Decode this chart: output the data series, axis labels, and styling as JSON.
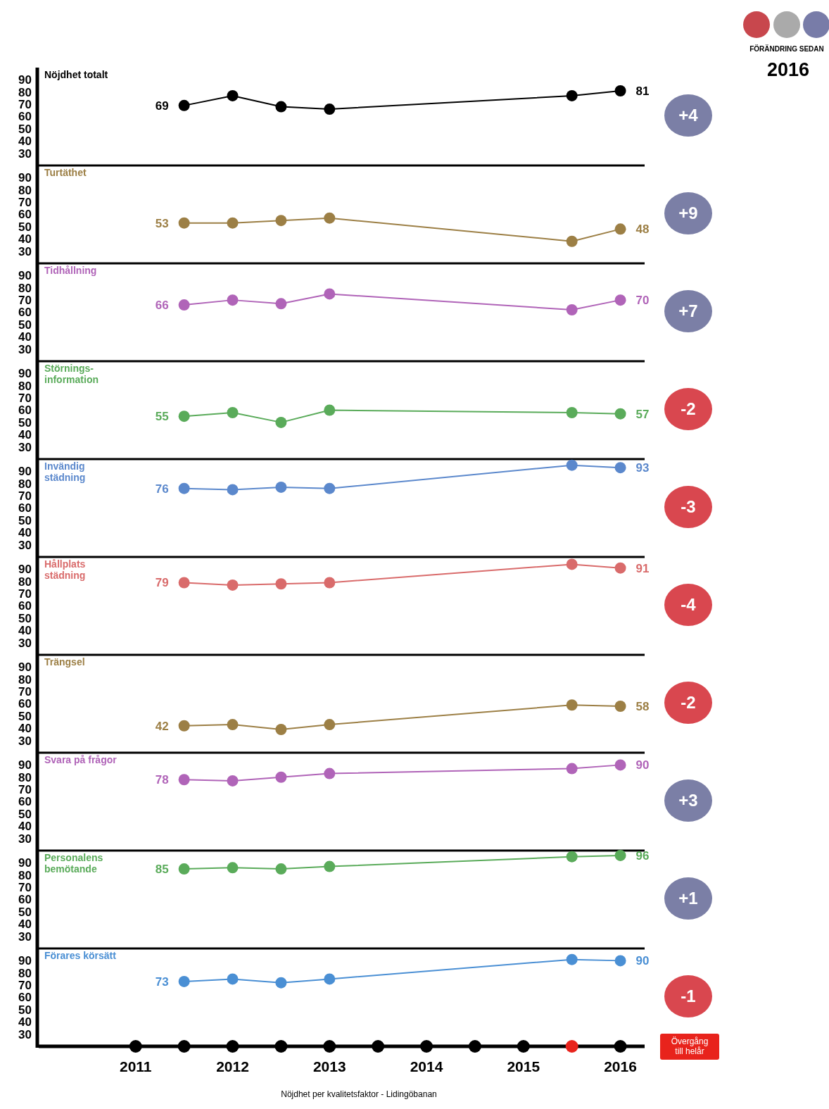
{
  "chart_data": [
    {
      "type": "line",
      "title": "Nöjdhet totalt",
      "x": [
        2011.5,
        2012,
        2012.5,
        2013,
        2015.5,
        2016
      ],
      "values": [
        69,
        77,
        68,
        66,
        77,
        81
      ],
      "value_labels": [
        "69",
        null,
        null,
        null,
        null,
        "81"
      ],
      "color": "#000000",
      "xlim": [
        2010,
        2016.25
      ],
      "ylim": [
        20,
        100
      ],
      "yticks": [
        30,
        40,
        50,
        60,
        70,
        80,
        90
      ],
      "tick_labels": "y",
      "marker": "circle",
      "annotations": [
        "+4",
        "FÖRÄNDRING SEDAN",
        "2016"
      ]
    },
    {
      "type": "line",
      "title": "Turtäthet",
      "x": [
        2011.5,
        2012,
        2012.5,
        2013,
        2015.5,
        2016
      ],
      "values": [
        53,
        53,
        55,
        57,
        38,
        48
      ],
      "value_labels": [
        "53",
        null,
        null,
        null,
        null,
        "48"
      ],
      "color": "#9c7f45",
      "xlim": [
        2010,
        2016.25
      ],
      "ylim": [
        20,
        100
      ],
      "yticks": [
        30,
        40,
        50,
        60,
        70,
        80,
        90
      ],
      "tick_labels": "y",
      "marker": "circle",
      "annotations": [
        "+9"
      ]
    },
    {
      "type": "line",
      "title": "Tidhållning",
      "x": [
        2011.5,
        2012,
        2012.5,
        2013,
        2015.5,
        2016
      ],
      "values": [
        66,
        70,
        67,
        75,
        62,
        70
      ],
      "value_labels": [
        "66",
        null,
        null,
        null,
        null,
        "70"
      ],
      "color": "#b064b8",
      "xlim": [
        2010,
        2016.25
      ],
      "ylim": [
        20,
        100
      ],
      "yticks": [
        30,
        40,
        50,
        60,
        70,
        80,
        90
      ],
      "tick_labels": "y",
      "marker": "circle",
      "annotations": [
        "+7"
      ]
    },
    {
      "type": "line",
      "title": "Störnings-\ninformation",
      "x": [
        2011.5,
        2012,
        2012.5,
        2013,
        2015.5,
        2016
      ],
      "values": [
        55,
        58,
        50,
        60,
        58,
        57
      ],
      "value_labels": [
        "55",
        null,
        null,
        null,
        null,
        "57"
      ],
      "color": "#5aab5a",
      "xlim": [
        2010,
        2016.25
      ],
      "ylim": [
        20,
        100
      ],
      "yticks": [
        30,
        40,
        50,
        60,
        70,
        80,
        90
      ],
      "tick_labels": "y",
      "marker": "circle",
      "annotations": [
        "-2"
      ]
    },
    {
      "type": "line",
      "title": "Invändig\nstädning",
      "x": [
        2011.5,
        2012,
        2012.5,
        2013,
        2015.5,
        2016
      ],
      "values": [
        76,
        75,
        77,
        76,
        95,
        93
      ],
      "value_labels": [
        "76",
        null,
        null,
        null,
        null,
        "93"
      ],
      "color": "#5b88cc",
      "xlim": [
        2010,
        2016.25
      ],
      "ylim": [
        20,
        100
      ],
      "yticks": [
        30,
        40,
        50,
        60,
        70,
        80,
        90
      ],
      "tick_labels": "y",
      "marker": "circle",
      "annotations": [
        "-3"
      ]
    },
    {
      "type": "line",
      "title": "Hållplats\nstädning",
      "x": [
        2011.5,
        2012,
        2012.5,
        2013,
        2015.5,
        2016
      ],
      "values": [
        79,
        77,
        78,
        79,
        94,
        91
      ],
      "value_labels": [
        "79",
        null,
        null,
        null,
        null,
        "91"
      ],
      "color": "#d96b6b",
      "xlim": [
        2010,
        2016.25
      ],
      "ylim": [
        20,
        100
      ],
      "yticks": [
        30,
        40,
        50,
        60,
        70,
        80,
        90
      ],
      "tick_labels": "y",
      "marker": "circle",
      "annotations": [
        "-4"
      ]
    },
    {
      "type": "line",
      "title": "Trängsel",
      "x": [
        2011.5,
        2012,
        2012.5,
        2013,
        2015.5,
        2016
      ],
      "values": [
        42,
        43,
        39,
        43,
        59,
        58
      ],
      "value_labels": [
        "42",
        null,
        null,
        null,
        null,
        "58"
      ],
      "color": "#9c7f45",
      "xlim": [
        2010,
        2016.25
      ],
      "ylim": [
        20,
        100
      ],
      "yticks": [
        30,
        40,
        50,
        60,
        70,
        80,
        90
      ],
      "tick_labels": "y",
      "marker": "circle",
      "annotations": [
        "-2"
      ]
    },
    {
      "type": "line",
      "title": "Svara på frågor",
      "x": [
        2011.5,
        2012,
        2012.5,
        2013,
        2015.5,
        2016
      ],
      "values": [
        78,
        77,
        80,
        83,
        87,
        90
      ],
      "value_labels": [
        "78",
        null,
        null,
        null,
        null,
        "90"
      ],
      "color": "#b064b8",
      "xlim": [
        2010,
        2016.25
      ],
      "ylim": [
        20,
        100
      ],
      "yticks": [
        30,
        40,
        50,
        60,
        70,
        80,
        90
      ],
      "tick_labels": "y",
      "marker": "circle",
      "annotations": [
        "+3"
      ]
    },
    {
      "type": "line",
      "title": "Personalens\nbemötande",
      "x": [
        2011.5,
        2012,
        2012.5,
        2013,
        2015.5,
        2016
      ],
      "values": [
        85,
        86,
        85,
        87,
        95,
        96
      ],
      "value_labels": [
        "85",
        null,
        null,
        null,
        null,
        "96"
      ],
      "color": "#5aab5a",
      "xlim": [
        2010,
        2016.25
      ],
      "ylim": [
        20,
        100
      ],
      "yticks": [
        30,
        40,
        50,
        60,
        70,
        80,
        90
      ],
      "tick_labels": "y",
      "marker": "circle",
      "annotations": [
        "+1"
      ]
    },
    {
      "type": "line",
      "title": "Förares körsätt",
      "series": [
        {
          "x": [
            2011.5,
            2012,
            2012.5,
            2013,
            2015.5,
            2016
          ],
          "values": [
            73,
            75,
            72,
            75,
            91,
            90
          ],
          "value_labels": [
            "73",
            null,
            null,
            null,
            null,
            "90"
          ],
          "color": "#4a8fd4"
        },
        {
          "type": "scatter",
          "x": [
            2011,
            2011.5,
            2012,
            2012.5,
            2013,
            2013.5,
            2014,
            2014.5,
            2015,
            2015.5,
            2016
          ],
          "values": [
            20,
            20,
            20,
            20,
            20,
            20,
            20,
            20,
            20,
            20,
            20
          ],
          "colors": [
            "#000000",
            "#000000",
            "#000000",
            "#000000",
            "#000000",
            "#000000",
            "#000000",
            "#000000",
            "#000000",
            "#e8231c",
            "#000000"
          ]
        }
      ],
      "xlim": [
        2010,
        2016.25
      ],
      "xticks": [
        2011,
        2012,
        2013,
        2014,
        2015,
        2016
      ],
      "ylim": [
        20,
        100
      ],
      "yticks": [
        30,
        40,
        50,
        60,
        70,
        80,
        90
      ],
      "marker": "circle",
      "annotations": [
        "-1",
        "Övergång till helår",
        "Nöjdhet per kvalitetsfaktor - Lidingöbanan"
      ]
    }
  ]
}
